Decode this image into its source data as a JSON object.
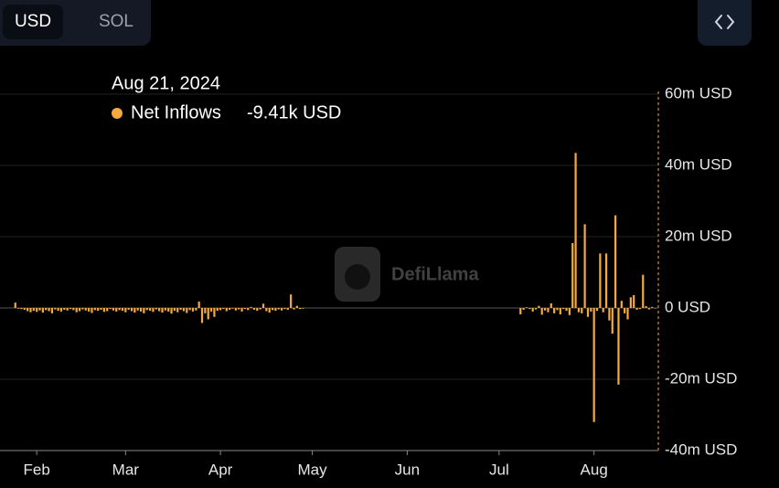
{
  "controls": {
    "toggle": [
      "USD",
      "SOL"
    ]
  },
  "chart_data": {
    "type": "bar",
    "watermark": "DefiLlama",
    "tooltip": {
      "date": "Aug 21, 2024",
      "value": "-9.41k USD"
    },
    "grid": true,
    "xlim": [
      "2024-01-20",
      "2024-08-22"
    ],
    "xticks": [
      {
        "value": "2024-02-01",
        "label": "Feb"
      },
      {
        "value": "2024-03-01",
        "label": "Mar"
      },
      {
        "value": "2024-04-01",
        "label": "Apr"
      },
      {
        "value": "2024-05-01",
        "label": "May"
      },
      {
        "value": "2024-06-01",
        "label": "Jun"
      },
      {
        "value": "2024-07-01",
        "label": "Jul"
      },
      {
        "value": "2024-08-01",
        "label": "Aug"
      }
    ],
    "ylim": [
      -40000000,
      60000000
    ],
    "yticks": [
      {
        "value": 60000000,
        "label": "60m USD"
      },
      {
        "value": 40000000,
        "label": "40m USD"
      },
      {
        "value": 20000000,
        "label": "20m USD"
      },
      {
        "value": 0,
        "label": "0 USD"
      },
      {
        "value": -20000000,
        "label": "-20m USD"
      },
      {
        "value": -40000000,
        "label": "-40m USD"
      }
    ],
    "x": [
      "2024-01-25",
      "2024-01-26",
      "2024-01-27",
      "2024-01-28",
      "2024-01-29",
      "2024-01-30",
      "2024-01-31",
      "2024-02-01",
      "2024-02-02",
      "2024-02-03",
      "2024-02-04",
      "2024-02-05",
      "2024-02-06",
      "2024-02-07",
      "2024-02-08",
      "2024-02-09",
      "2024-02-10",
      "2024-02-11",
      "2024-02-12",
      "2024-02-13",
      "2024-02-14",
      "2024-02-15",
      "2024-02-16",
      "2024-02-17",
      "2024-02-18",
      "2024-02-19",
      "2024-02-20",
      "2024-02-21",
      "2024-02-22",
      "2024-02-23",
      "2024-02-24",
      "2024-02-25",
      "2024-02-26",
      "2024-02-27",
      "2024-02-28",
      "2024-02-29",
      "2024-03-01",
      "2024-03-02",
      "2024-03-03",
      "2024-03-04",
      "2024-03-05",
      "2024-03-06",
      "2024-03-07",
      "2024-03-08",
      "2024-03-09",
      "2024-03-10",
      "2024-03-11",
      "2024-03-12",
      "2024-03-13",
      "2024-03-14",
      "2024-03-15",
      "2024-03-16",
      "2024-03-17",
      "2024-03-18",
      "2024-03-19",
      "2024-03-20",
      "2024-03-21",
      "2024-03-22",
      "2024-03-23",
      "2024-03-24",
      "2024-03-25",
      "2024-03-26",
      "2024-03-27",
      "2024-03-28",
      "2024-03-29",
      "2024-03-30",
      "2024-03-31",
      "2024-04-01",
      "2024-04-02",
      "2024-04-03",
      "2024-04-04",
      "2024-04-05",
      "2024-04-06",
      "2024-04-07",
      "2024-04-08",
      "2024-04-09",
      "2024-04-10",
      "2024-04-11",
      "2024-04-12",
      "2024-04-13",
      "2024-04-14",
      "2024-04-15",
      "2024-04-16",
      "2024-04-17",
      "2024-04-18",
      "2024-04-19",
      "2024-04-20",
      "2024-04-21",
      "2024-04-22",
      "2024-04-23",
      "2024-04-24",
      "2024-04-25",
      "2024-04-26",
      "2024-04-27",
      "2024-04-28",
      "2024-07-08",
      "2024-07-09",
      "2024-07-10",
      "2024-07-11",
      "2024-07-12",
      "2024-07-13",
      "2024-07-14",
      "2024-07-15",
      "2024-07-16",
      "2024-07-17",
      "2024-07-18",
      "2024-07-19",
      "2024-07-20",
      "2024-07-21",
      "2024-07-22",
      "2024-07-23",
      "2024-07-24",
      "2024-07-25",
      "2024-07-26",
      "2024-07-27",
      "2024-07-28",
      "2024-07-29",
      "2024-07-30",
      "2024-07-31",
      "2024-08-01",
      "2024-08-02",
      "2024-08-03",
      "2024-08-04",
      "2024-08-05",
      "2024-08-06",
      "2024-08-07",
      "2024-08-08",
      "2024-08-09",
      "2024-08-10",
      "2024-08-11",
      "2024-08-12",
      "2024-08-13",
      "2024-08-14",
      "2024-08-15",
      "2024-08-16",
      "2024-08-17",
      "2024-08-18",
      "2024-08-19",
      "2024-08-20",
      "2024-08-21"
    ],
    "series": [
      {
        "name": "Net Inflows",
        "color": "#f5a93f",
        "values": [
          1500000,
          -200000,
          -300000,
          -500000,
          -900000,
          -1200000,
          -800000,
          -1100000,
          -700000,
          -1300000,
          -600000,
          -900000,
          -1500000,
          -400000,
          -800000,
          -1000000,
          -500000,
          -700000,
          -300000,
          -600000,
          -1200000,
          -900000,
          -400000,
          -700000,
          -1000000,
          -1400000,
          -600000,
          -800000,
          -500000,
          -1100000,
          -900000,
          -300000,
          -700000,
          -1000000,
          -600000,
          -800000,
          -1200000,
          -500000,
          -900000,
          -1300000,
          -700000,
          -1000000,
          -1500000,
          -600000,
          -800000,
          -1100000,
          -400000,
          -900000,
          -1300000,
          -700000,
          -1000000,
          -1600000,
          -800000,
          -1200000,
          -500000,
          -900000,
          -1400000,
          -600000,
          -1000000,
          -700000,
          1800000,
          -4200000,
          -1500000,
          -3200000,
          -1000000,
          -2500000,
          -800000,
          -600000,
          -300000,
          -900000,
          -500000,
          -200000,
          -700000,
          -400000,
          -1000000,
          -300000,
          -600000,
          300000,
          -500000,
          -800000,
          -400000,
          1200000,
          -900000,
          -1300000,
          -600000,
          -800000,
          -400000,
          -700000,
          -300000,
          -500000,
          3800000,
          -400000,
          600000,
          -300000,
          -200000,
          -1800000,
          -500000,
          200000,
          -300000,
          -1000000,
          -400000,
          600000,
          -1900000,
          -700000,
          -1200000,
          1300000,
          -1500000,
          -600000,
          -1800000,
          -300000,
          -800000,
          -2000000,
          18200000,
          43500000,
          -1200000,
          -1500000,
          23500000,
          -2500000,
          -1000000,
          -32000000,
          -800000,
          15300000,
          -1200000,
          15300000,
          -3500000,
          -7200000,
          26000000,
          -21500000,
          2000000,
          -1500000,
          -3200000,
          3000000,
          3600000,
          -500000,
          -300000,
          9300000,
          500000,
          -400000,
          300000,
          -9410
        ]
      }
    ]
  }
}
